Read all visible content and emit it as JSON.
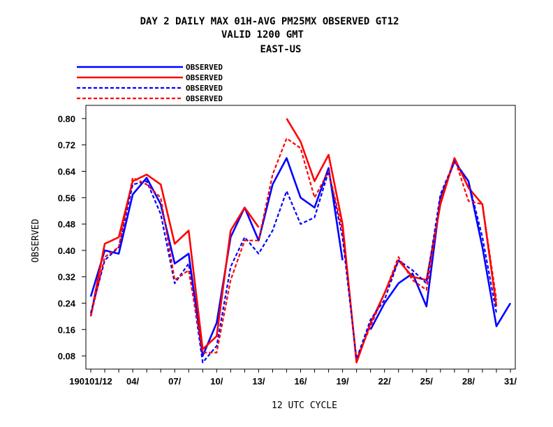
{
  "chart_data": {
    "type": "line",
    "title_lines": [
      "DAY 2 DAILY MAX   01H-AVG PM25MX OBSERVED GT12",
      "VALID 1200 GMT",
      "EAST-US"
    ],
    "xlabel": "12 UTC CYCLE",
    "ylabel": "OBSERVED",
    "ylim": [
      0.04,
      0.84
    ],
    "xlim": [
      1,
      31
    ],
    "yticks": [
      "0.08",
      "0.16",
      "0.24",
      "0.32",
      "0.40",
      "0.48",
      "0.56",
      "0.64",
      "0.72",
      "0.80"
    ],
    "xticks": [
      {
        "x": 1,
        "label": "190101/12"
      },
      {
        "x": 4,
        "label": "04/"
      },
      {
        "x": 7,
        "label": "07/"
      },
      {
        "x": 10,
        "label": "10/"
      },
      {
        "x": 13,
        "label": "13/"
      },
      {
        "x": 16,
        "label": "16/"
      },
      {
        "x": 19,
        "label": "19/"
      },
      {
        "x": 22,
        "label": "22/"
      },
      {
        "x": 25,
        "label": "25/"
      },
      {
        "x": 28,
        "label": "28/"
      },
      {
        "x": 31,
        "label": "31/"
      }
    ],
    "grid": false,
    "legend_position": "top-left",
    "series": [
      {
        "name": "OBSERVED",
        "color": "#0000ff",
        "dash": "solid",
        "x": [
          1,
          2,
          3,
          4,
          5,
          6,
          7,
          8,
          9,
          10,
          11,
          12,
          13,
          14,
          15,
          16,
          17,
          18,
          19,
          21,
          22,
          23,
          24,
          25,
          26,
          27,
          28,
          29,
          30,
          31
        ],
        "y": [
          0.26,
          0.4,
          0.39,
          0.57,
          0.62,
          0.54,
          0.36,
          0.39,
          0.08,
          0.18,
          0.44,
          0.53,
          0.43,
          0.6,
          0.68,
          0.56,
          0.53,
          0.65,
          0.37,
          0.16,
          0.24,
          0.3,
          0.33,
          0.23,
          0.56,
          0.67,
          0.61,
          0.41,
          0.17,
          0.24
        ]
      },
      {
        "name": "OBSERVED",
        "color": "#ff0000",
        "dash": "solid",
        "x": [
          1,
          2,
          3,
          4,
          5,
          6,
          7,
          8,
          9,
          10,
          11,
          12,
          13,
          15,
          16,
          17,
          18,
          19,
          20,
          21,
          22,
          23,
          24,
          25,
          26,
          27,
          28,
          29,
          30
        ],
        "y": [
          0.2,
          0.42,
          0.44,
          0.61,
          0.63,
          0.6,
          0.42,
          0.46,
          0.1,
          0.14,
          0.46,
          0.53,
          0.47,
          0.8,
          0.73,
          0.61,
          0.69,
          0.48,
          0.06,
          0.18,
          0.27,
          0.37,
          0.32,
          0.31,
          0.54,
          0.68,
          0.59,
          0.54,
          0.23
        ]
      },
      {
        "name": "OBSERVED",
        "color": "#0000ff",
        "dash": "dashed",
        "x": [
          1,
          2,
          3,
          4,
          5,
          6,
          7,
          8,
          9,
          10,
          11,
          12,
          13,
          14,
          15,
          16,
          17,
          18,
          19,
          20,
          21,
          22,
          23,
          24,
          25,
          26,
          27,
          28,
          29,
          30
        ],
        "y": [
          0.21,
          0.37,
          0.41,
          0.6,
          0.61,
          0.51,
          0.3,
          0.36,
          0.06,
          0.11,
          0.35,
          0.44,
          0.39,
          0.46,
          0.58,
          0.48,
          0.5,
          0.64,
          0.44,
          0.07,
          0.19,
          0.25,
          0.37,
          0.34,
          0.3,
          0.57,
          0.67,
          0.61,
          0.44,
          0.21
        ]
      },
      {
        "name": "OBSERVED",
        "color": "#ff0000",
        "dash": "dashed",
        "x": [
          1,
          2,
          3,
          4,
          5,
          6,
          7,
          8,
          9,
          10,
          11,
          12,
          13,
          14,
          15,
          16,
          17,
          18,
          19,
          20,
          21,
          22,
          23,
          24,
          25,
          26,
          27,
          28,
          29,
          30
        ],
        "y": [
          0.2,
          0.38,
          0.41,
          0.62,
          0.6,
          0.56,
          0.31,
          0.34,
          0.09,
          0.09,
          0.31,
          0.43,
          0.43,
          0.63,
          0.74,
          0.71,
          0.56,
          0.64,
          0.46,
          0.07,
          0.17,
          0.27,
          0.38,
          0.31,
          0.28,
          0.55,
          0.68,
          0.55,
          0.54,
          0.25
        ]
      }
    ]
  }
}
